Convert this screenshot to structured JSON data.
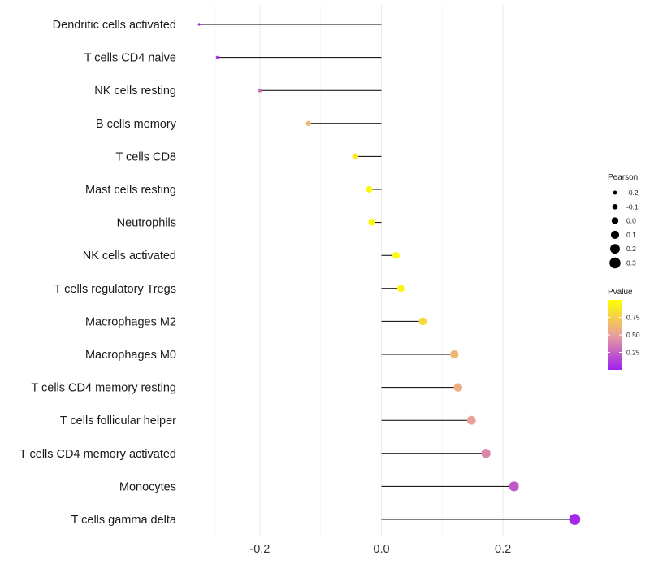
{
  "chart_data": {
    "type": "lollipop",
    "title": "",
    "xlabel": "",
    "ylabel": "",
    "xlim": [
      -0.3,
      0.32
    ],
    "grid": true,
    "x_ticks": [
      {
        "value": -0.2,
        "label": "-0.2"
      },
      {
        "value": 0.0,
        "label": "0.0"
      },
      {
        "value": 0.2,
        "label": "0.2"
      }
    ],
    "x_minor_ticks": [
      -0.1,
      0.1
    ],
    "series": [
      {
        "category": "Dendritic cells activated",
        "pearson": -0.3,
        "pvalue": 0.02
      },
      {
        "category": "T cells CD4 naive",
        "pearson": -0.27,
        "pvalue": 0.08
      },
      {
        "category": "NK cells resting",
        "pearson": -0.2,
        "pvalue": 0.3
      },
      {
        "category": "B cells memory",
        "pearson": -0.12,
        "pvalue": 0.62
      },
      {
        "category": "T cells CD8",
        "pearson": -0.043,
        "pvalue": 0.88
      },
      {
        "category": "Mast cells resting",
        "pearson": -0.02,
        "pvalue": 0.97
      },
      {
        "category": "Neutrophils",
        "pearson": -0.016,
        "pvalue": 0.98
      },
      {
        "category": "NK cells activated",
        "pearson": 0.024,
        "pvalue": 0.97
      },
      {
        "category": "T cells regulatory  Tregs ",
        "pearson": 0.032,
        "pvalue": 0.94
      },
      {
        "category": "Macrophages M2",
        "pearson": 0.068,
        "pvalue": 0.8
      },
      {
        "category": "Macrophages M0",
        "pearson": 0.12,
        "pvalue": 0.62
      },
      {
        "category": "T cells CD4 memory resting",
        "pearson": 0.126,
        "pvalue": 0.58
      },
      {
        "category": "T cells follicular helper",
        "pearson": 0.148,
        "pvalue": 0.5
      },
      {
        "category": "T cells CD4 memory activated",
        "pearson": 0.172,
        "pvalue": 0.4
      },
      {
        "category": "Monocytes",
        "pearson": 0.218,
        "pvalue": 0.22
      },
      {
        "category": "T cells gamma delta",
        "pearson": 0.318,
        "pvalue": 0.03
      }
    ],
    "legend_size": {
      "title": "Pearson",
      "entries": [
        {
          "value": -0.2,
          "label": "-0.2"
        },
        {
          "value": -0.1,
          "label": "-0.1"
        },
        {
          "value": 0.0,
          "label": "0.0"
        },
        {
          "value": 0.1,
          "label": "0.1"
        },
        {
          "value": 0.2,
          "label": "0.2"
        },
        {
          "value": 0.3,
          "label": "0.3"
        }
      ]
    },
    "legend_color": {
      "title": "Pvalue",
      "range": [
        0.0,
        1.0
      ],
      "low_color": "#A020F0",
      "mid_color": "#E8A09A",
      "high_color": "#FFFF00",
      "ticks": [
        {
          "value": 0.25,
          "label": "0.25"
        },
        {
          "value": 0.5,
          "label": "0.50"
        },
        {
          "value": 0.75,
          "label": "0.75"
        }
      ]
    },
    "legend_placement": "right"
  }
}
